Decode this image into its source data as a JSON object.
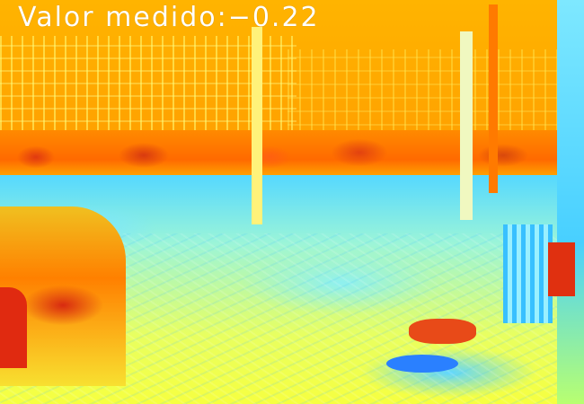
{
  "overlay": {
    "label": "Valor medido:",
    "value": "−0.22"
  },
  "image": {
    "colormap": "jet",
    "subject": "heatmap of fenced lot"
  }
}
